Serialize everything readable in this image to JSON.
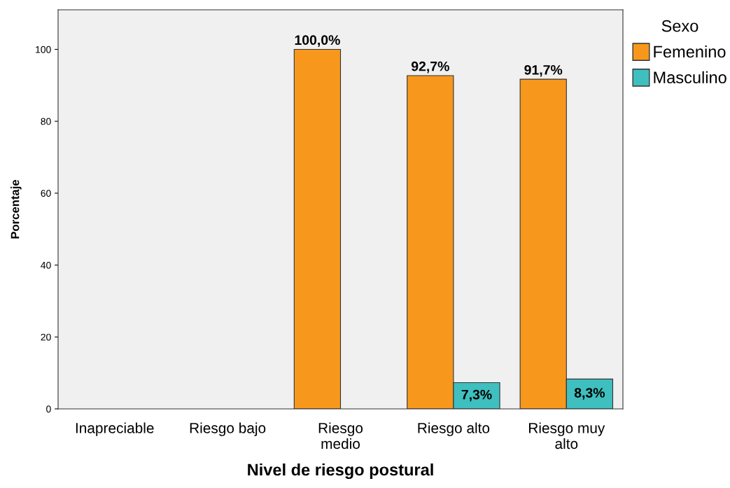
{
  "chart_data": {
    "type": "bar",
    "xlabel": "Nivel de riesgo postural",
    "ylabel": "Porcentaje",
    "legend_title": "Sexo",
    "categories": [
      "Inapreciable",
      "Riesgo bajo",
      "Riesgo\nmedio",
      "Riesgo alto",
      "Riesgo muy\nalto"
    ],
    "series": [
      {
        "name": "Femenino",
        "color": "#f7981d",
        "values": [
          null,
          null,
          100,
          92.7,
          91.7
        ],
        "value_labels": [
          null,
          null,
          "100,0%",
          "92,7%",
          "91,7%"
        ]
      },
      {
        "name": "Masculino",
        "color": "#3fbfbf",
        "values": [
          null,
          null,
          null,
          7.3,
          8.3
        ],
        "value_labels": [
          null,
          null,
          null,
          "7,3%",
          "8,3%"
        ]
      }
    ],
    "ylim": [
      0,
      111
    ],
    "yticks": [
      0,
      20,
      40,
      60,
      80,
      100
    ],
    "grid": false,
    "legend": "right"
  }
}
